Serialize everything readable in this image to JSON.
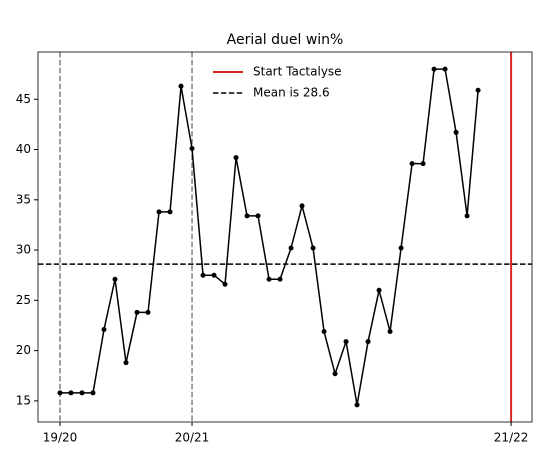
{
  "chart_data": {
    "type": "line",
    "title": "Aerial duel win%",
    "x": [
      0,
      1,
      2,
      3,
      4,
      5,
      6,
      7,
      8,
      9,
      10,
      11,
      12,
      13,
      14,
      15,
      16,
      17,
      18,
      19,
      20,
      21,
      22,
      23,
      24,
      25,
      26,
      27,
      28,
      29,
      30,
      31,
      32,
      33,
      34,
      35,
      36,
      37,
      38
    ],
    "series": [
      {
        "color": "#000000",
        "values": [
          15.8,
          15.8,
          15.8,
          15.8,
          22.1,
          27.1,
          18.8,
          23.8,
          23.8,
          33.8,
          33.8,
          46.3,
          40.1,
          27.5,
          27.5,
          26.6,
          39.2,
          33.4,
          33.4,
          27.1,
          27.1,
          30.2,
          34.4,
          30.2,
          21.9,
          17.7,
          20.9,
          14.6,
          20.9,
          26.0,
          21.9,
          30.2,
          38.6,
          38.6,
          48.0,
          48.0,
          41.7,
          33.4,
          45.9
        ]
      }
    ],
    "xlim": [
      -2,
      42.9
    ],
    "ylim": [
      12.9,
      49.7
    ],
    "xticks": [
      {
        "value": 0,
        "label": "19/20"
      },
      {
        "value": 12,
        "label": "20/21"
      },
      {
        "value": 41,
        "label": "21/22"
      }
    ],
    "yticks": [
      15,
      20,
      25,
      30,
      35,
      40,
      45
    ],
    "season_lines": {
      "values": [
        0,
        12
      ],
      "color": "#808080"
    },
    "reference_lines": [
      {
        "name": "Start Tactalyse",
        "axis": "x",
        "value": 41,
        "color": "#d62728",
        "style": "solid"
      },
      {
        "name": "Mean is 28.6",
        "axis": "y",
        "value": 28.6,
        "color": "#000000",
        "style": "dashed"
      }
    ],
    "legend": "upper center"
  }
}
